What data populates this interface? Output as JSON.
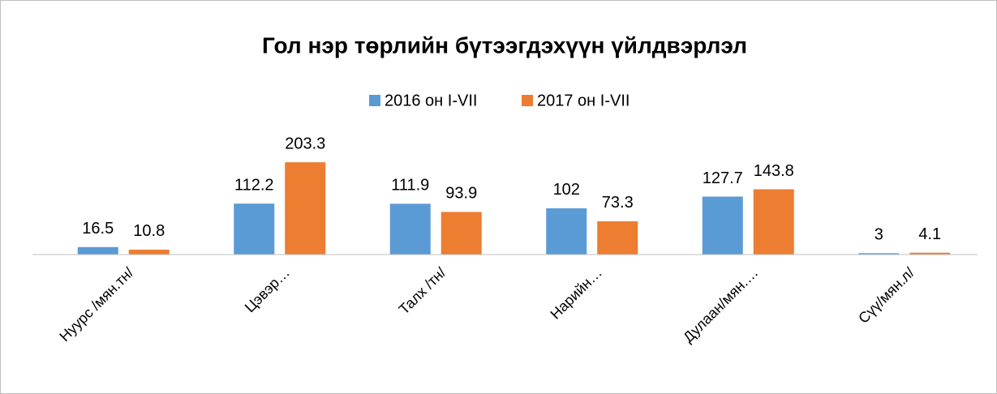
{
  "chart_data": {
    "type": "bar",
    "title": "Гол нэр төрлийн бүтээгдэхүүн үйлдвэрлэл",
    "categories": [
      "Нуурс /мян.тн/",
      "Цэвэр…",
      "Талх /тн/",
      "Нарийн…",
      "Дулаан/мян.…",
      "Сүү/мян.л/"
    ],
    "series": [
      {
        "name": "2016 он I-VII",
        "color": "#5b9bd5",
        "values": [
          16.5,
          112.2,
          111.9,
          102,
          127.7,
          3
        ]
      },
      {
        "name": "2017 он I-VII",
        "color": "#ed7d31",
        "values": [
          10.8,
          203.3,
          93.9,
          73.3,
          143.8,
          4.1
        ]
      }
    ],
    "ylim": [
      0,
      250
    ],
    "legend": "top"
  }
}
